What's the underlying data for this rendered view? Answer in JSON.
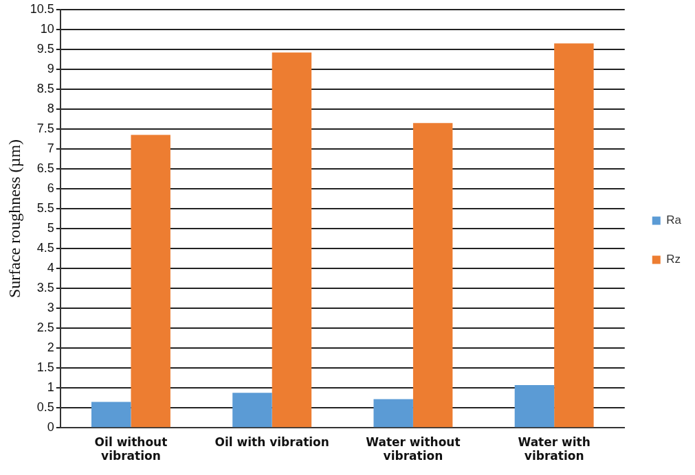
{
  "chart_data": {
    "type": "bar",
    "ylabel": "Surface roughness (µm)",
    "categories": [
      "Oil without vibration",
      "Oil with vibration",
      "Water without vibration",
      "Water with vibration"
    ],
    "series": [
      {
        "name": "Ra",
        "color": "#5b9bd5",
        "values": [
          0.65,
          0.88,
          0.72,
          1.07
        ]
      },
      {
        "name": "Rz",
        "color": "#ed7d31",
        "values": [
          7.35,
          9.42,
          7.65,
          9.65
        ]
      }
    ],
    "ylim": [
      0,
      10.5
    ],
    "yticks": [
      0,
      0.5,
      1,
      1.5,
      2,
      2.5,
      3,
      3.5,
      4,
      4.5,
      5,
      5.5,
      6,
      6.5,
      7,
      7.5,
      8,
      8.5,
      9,
      9.5,
      10,
      10.5
    ],
    "grid": "y",
    "legend": "right"
  }
}
